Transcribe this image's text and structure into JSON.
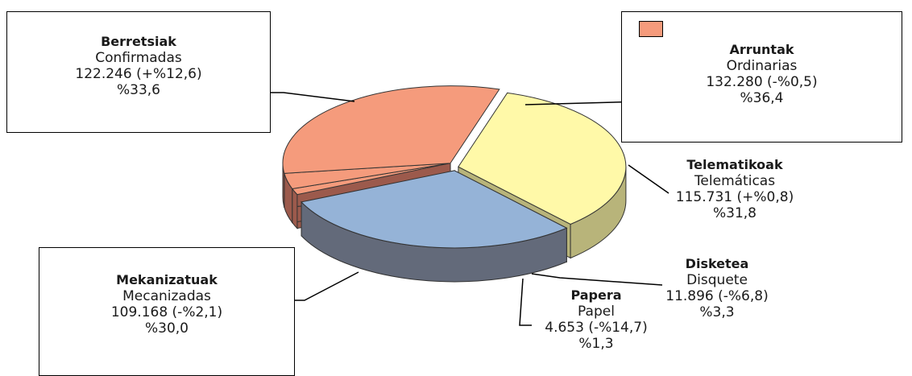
{
  "chart_data": {
    "type": "pie",
    "title": "",
    "legend_swatch_color": "#F59B7C",
    "segments": [
      {
        "name_eu": "Berretsiak",
        "name_es": "Confirmadas",
        "value": 122246,
        "value_text": "122.246 (+%12,6)",
        "percent": 33.6,
        "percent_text": "%33,6",
        "color": "#FFF9A8",
        "side": "#B8B47A"
      },
      {
        "name_eu": "Mekanizatuak",
        "name_es": "Mecanizadas",
        "value": 109168,
        "value_text": "109.168 (-%2,1)",
        "percent": 30.0,
        "percent_text": "%30,0",
        "color": "#95B3D7",
        "side": "#636A7A"
      },
      {
        "name_eu": "Papera",
        "name_es": "Papel",
        "value": 4653,
        "value_text": "4.653 (-%14,7)",
        "percent": 1.3,
        "percent_text": "%1,3",
        "color": "#F59B7C",
        "side": "#9C5A4C"
      },
      {
        "name_eu": "Disketea",
        "name_es": "Disquete",
        "value": 11896,
        "value_text": "11.896 (-%6,8)",
        "percent": 3.3,
        "percent_text": "%3,3",
        "color": "#F59B7C",
        "side": "#9C5A4C"
      },
      {
        "name_eu": "Telematikoak",
        "name_es": "Telemáticas",
        "value": 115731,
        "value_text": "115.731 (+%0,8)",
        "percent": 31.8,
        "percent_text": "%31,8",
        "color": "#F59B7C",
        "side": "#9C5A4C"
      }
    ],
    "group": {
      "name_eu": "Arruntak",
      "name_es": "Ordinarias",
      "value": 132280,
      "value_text": "132.280 (-%0,5)",
      "percent": 36.4,
      "percent_text": "%36,4",
      "members": [
        "Papera",
        "Disketea",
        "Telematikoak"
      ]
    }
  }
}
